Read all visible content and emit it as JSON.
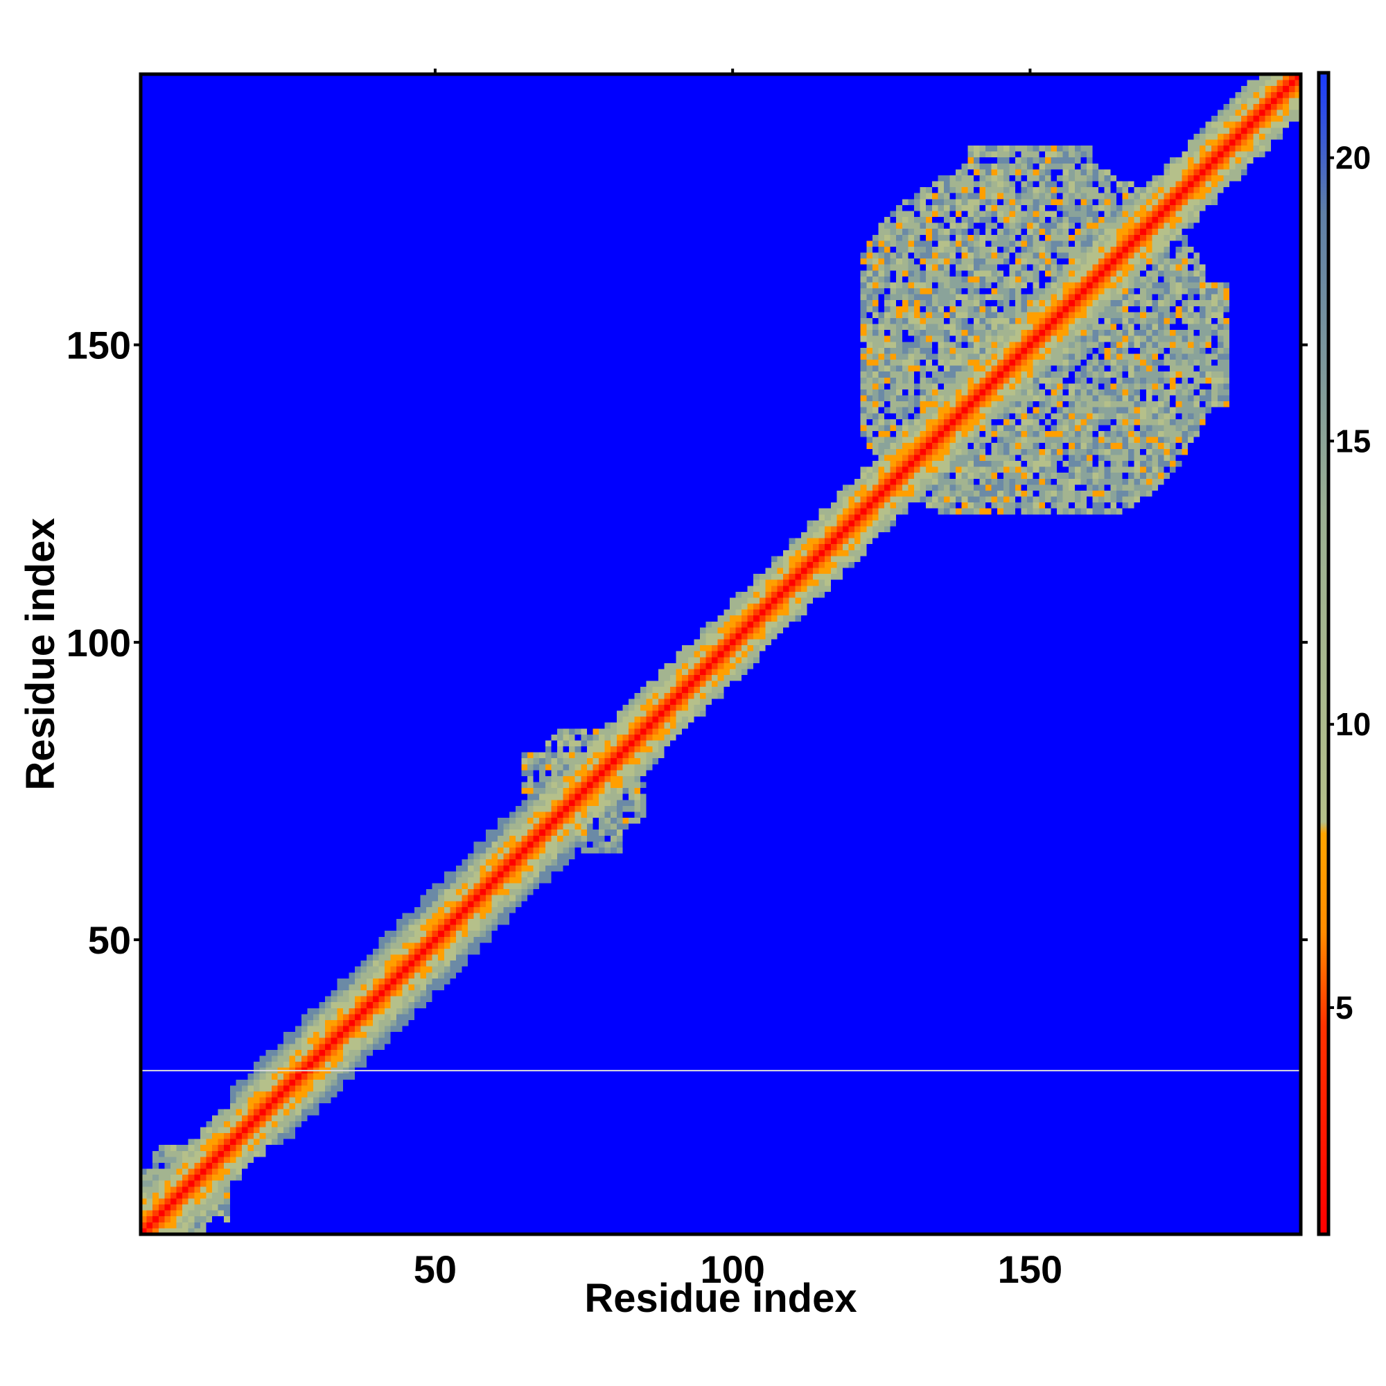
{
  "chart_data": {
    "type": "heatmap",
    "title": "",
    "xlabel": "Residue index",
    "ylabel": "Residue index",
    "x_range": [
      1,
      195
    ],
    "y_range": [
      1,
      195
    ],
    "x_ticks": [
      "50",
      "100",
      "150"
    ],
    "x_tick_values": [
      50,
      100,
      150
    ],
    "y_ticks": [
      "50",
      "100",
      "150"
    ],
    "y_tick_values": [
      50,
      100,
      150
    ],
    "colorbar": {
      "range": [
        1,
        21.5
      ],
      "ticks": [
        "5",
        "10",
        "15",
        "20"
      ],
      "tick_values": [
        5,
        10,
        15,
        20
      ],
      "colors": {
        "low": "#ff0000",
        "mid_low": "#ff8c00",
        "mid": "#a8bc88",
        "high": "#5a7fa8",
        "max": "#0000ff"
      }
    },
    "background_color": "#0000ff",
    "features": [
      {
        "kind": "diagonal",
        "from": 1,
        "to": 195,
        "value": 1
      },
      {
        "kind": "band",
        "from": 20,
        "to": 72,
        "half_width": 9,
        "note": "broad band along the diagonal"
      },
      {
        "kind": "cluster",
        "x_range": [
          122,
          183
        ],
        "y_range": [
          122,
          183
        ],
        "center": 150
      },
      {
        "kind": "cluster",
        "x_range": [
          65,
          85
        ],
        "y_range": [
          65,
          85
        ],
        "center": 78
      },
      {
        "kind": "cluster",
        "x_range": [
          1,
          15
        ],
        "y_range": [
          1,
          15
        ],
        "center": 5
      }
    ],
    "horizontal_line_y": 28
  }
}
